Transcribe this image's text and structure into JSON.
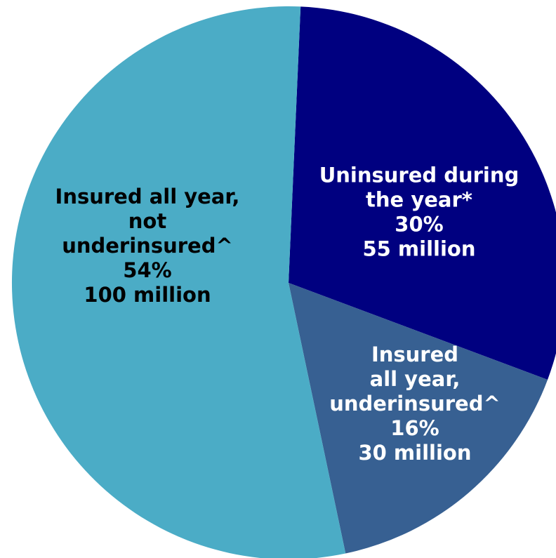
{
  "chart_data": {
    "type": "pie",
    "title": "",
    "slices": [
      {
        "label_lines": [
          "Uninsured during",
          "the year*"
        ],
        "percent_label": "30%",
        "count_label": "55 million",
        "value": 30,
        "color": "#000080",
        "text_color": "#ffffff"
      },
      {
        "label_lines": [
          "Insured",
          "all year,",
          "underinsured^"
        ],
        "percent_label": "16%",
        "count_label": "30 million",
        "value": 16,
        "color": "#376092",
        "text_color": "#ffffff"
      },
      {
        "label_lines": [
          "Insured all year,",
          "not",
          "underinsured^"
        ],
        "percent_label": "54%",
        "count_label": "100 million",
        "value": 54,
        "color": "#4BACC6",
        "text_color": "#000000"
      }
    ]
  }
}
